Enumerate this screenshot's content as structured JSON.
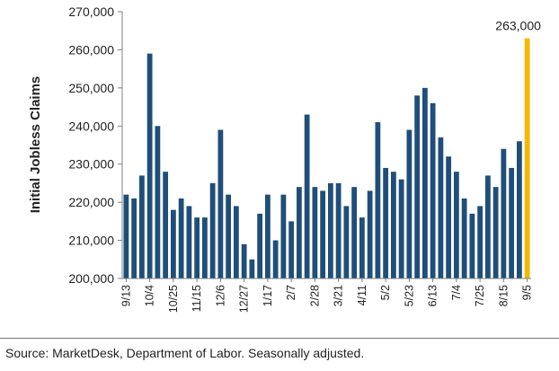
{
  "chart_data": {
    "type": "bar",
    "ylabel": "Initial Jobless Claims",
    "ylim": [
      200000,
      270000
    ],
    "yticks": [
      200000,
      210000,
      220000,
      230000,
      240000,
      250000,
      260000,
      270000
    ],
    "ytick_labels": [
      "200,000",
      "210,000",
      "220,000",
      "230,000",
      "240,000",
      "250,000",
      "260,000",
      "270,000"
    ],
    "xtick_labels": [
      "9/13",
      "10/4",
      "10/25",
      "11/15",
      "12/6",
      "12/27",
      "1/17",
      "2/7",
      "2/28",
      "3/21",
      "4/11",
      "5/2",
      "5/23",
      "6/13",
      "7/4",
      "7/25",
      "8/15",
      "9/5"
    ],
    "xtick_every": 3,
    "categories": [
      "9/13",
      "9/20",
      "9/27",
      "10/4",
      "10/11",
      "10/18",
      "10/25",
      "11/1",
      "11/8",
      "11/15",
      "11/22",
      "11/29",
      "12/6",
      "12/13",
      "12/20",
      "12/27",
      "1/3",
      "1/10",
      "1/17",
      "1/24",
      "1/31",
      "2/7",
      "2/14",
      "2/21",
      "2/28",
      "3/7",
      "3/14",
      "3/21",
      "3/28",
      "4/4",
      "4/11",
      "4/18",
      "4/25",
      "5/2",
      "5/9",
      "5/16",
      "5/23",
      "5/30",
      "6/6",
      "6/13",
      "6/20",
      "6/27",
      "7/4",
      "7/11",
      "7/18",
      "7/25",
      "8/1",
      "8/8",
      "8/15",
      "8/22",
      "8/29",
      "9/5"
    ],
    "values": [
      222000,
      221000,
      227000,
      259000,
      240000,
      228000,
      218000,
      221000,
      219000,
      216000,
      216000,
      225000,
      239000,
      222000,
      219000,
      209000,
      205000,
      217000,
      222000,
      210000,
      222000,
      215000,
      224000,
      243000,
      224000,
      223000,
      225000,
      225000,
      219000,
      224000,
      216000,
      223000,
      241000,
      229000,
      228000,
      226000,
      239000,
      248000,
      250000,
      246000,
      237000,
      232000,
      228000,
      221000,
      217000,
      219000,
      227000,
      224000,
      234000,
      229000,
      236000,
      263000
    ],
    "highlight_index": 51,
    "annotation": "263,000",
    "colors": {
      "bar": "#1f4e79",
      "highlight": "#f5b800"
    }
  },
  "footer": {
    "source": "Source: MarketDesk, Department of Labor. Seasonally adjusted."
  }
}
